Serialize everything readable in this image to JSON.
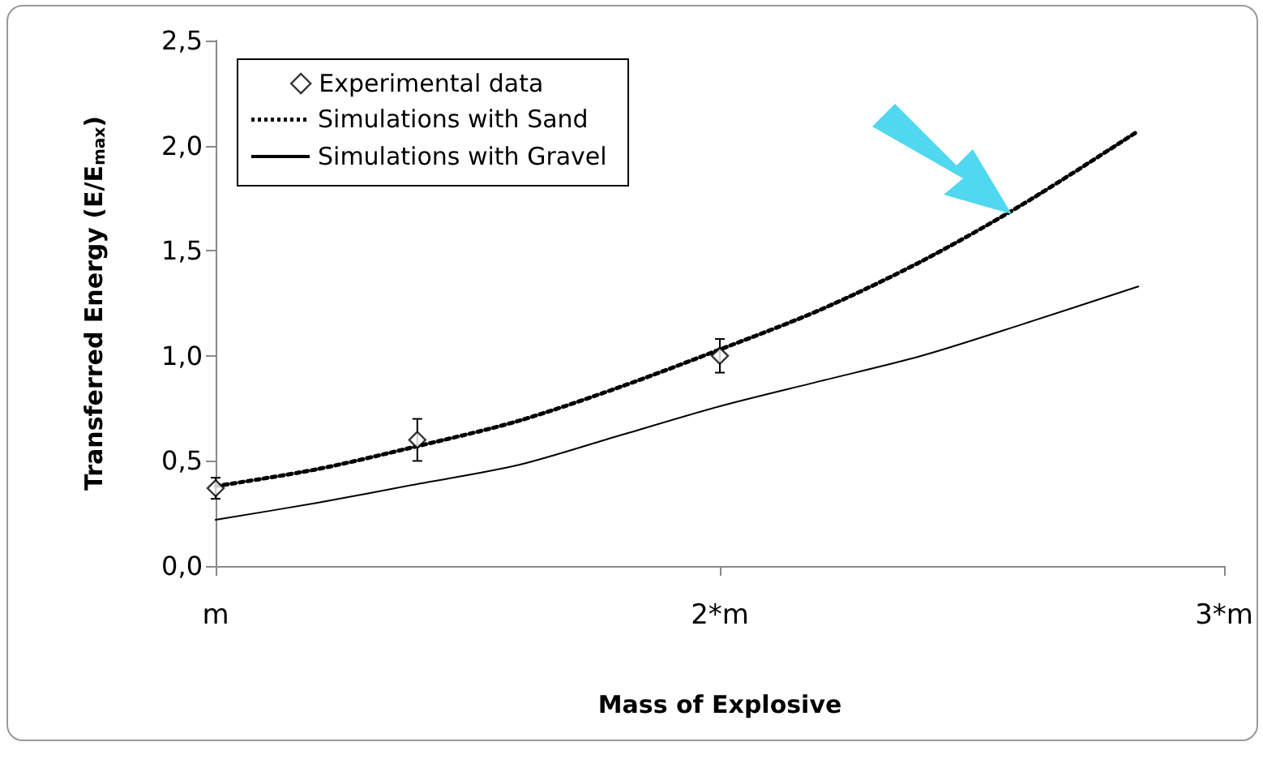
{
  "chart_data": {
    "type": "line",
    "xlabel": "Mass of Explosive",
    "ylabel": "Transferred Energy (E/E$_{max}$)",
    "xlim": [
      1,
      3
    ],
    "xticks": [
      {
        "value": 1,
        "label": "m"
      },
      {
        "value": 2,
        "label": "2*m"
      },
      {
        "value": 3,
        "label": "3*m"
      }
    ],
    "ylim": [
      0,
      2.5
    ],
    "yticks": [
      {
        "value": 0,
        "label": "0,0"
      },
      {
        "value": 0.5,
        "label": "0,5"
      },
      {
        "value": 1,
        "label": "1,0"
      },
      {
        "value": 1.5,
        "label": "1,5"
      },
      {
        "value": 2,
        "label": "2,0"
      },
      {
        "value": 2.5,
        "label": "2,5"
      }
    ],
    "grid": false,
    "legend": "top left",
    "series": [
      {
        "name": "Experimental data",
        "type": "scatter",
        "marker": "diamond",
        "color": "#000000",
        "x": [
          1,
          1.4,
          2
        ],
        "values": [
          0.37,
          0.6,
          1.0
        ],
        "errors": [
          0.05,
          0.1,
          0.08
        ]
      },
      {
        "name": "Simulations with Sand",
        "type": "line",
        "marker": "none",
        "line_style": "dotted",
        "color": "#000000",
        "x": [
          1,
          1.2,
          1.4,
          1.6,
          1.8,
          2,
          2.2,
          2.4,
          2.6,
          2.83
        ],
        "values": [
          0.38,
          0.46,
          0.57,
          0.69,
          0.85,
          1.03,
          1.22,
          1.45,
          1.72,
          2.07
        ]
      },
      {
        "name": "Simulations with Gravel",
        "type": "line",
        "marker": "none",
        "line_style": "solid",
        "color": "#000000",
        "x": [
          1,
          1.2,
          1.4,
          1.6,
          1.8,
          2,
          2.2,
          2.4,
          2.6,
          2.83
        ],
        "values": [
          0.22,
          0.3,
          0.39,
          0.48,
          0.62,
          0.76,
          0.88,
          1.0,
          1.15,
          1.33
        ]
      }
    ]
  }
}
